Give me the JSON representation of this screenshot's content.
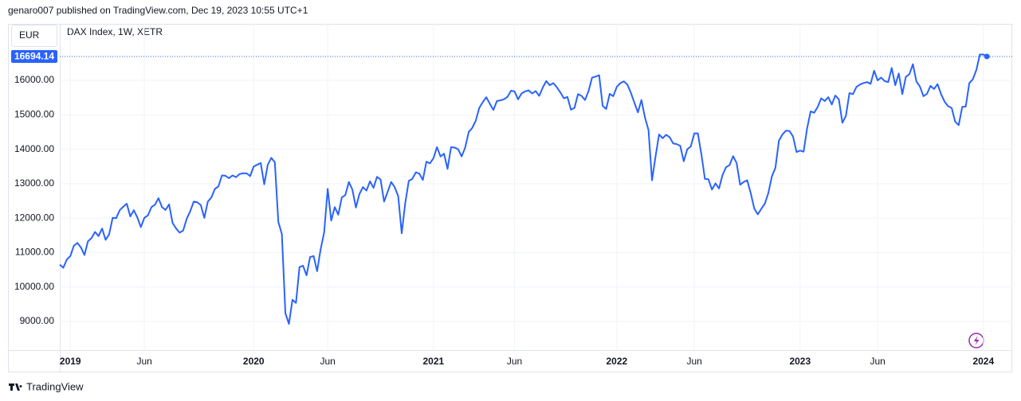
{
  "header": "genaro007 published on TradingView.com, Dec 19, 2023 10:55 UTC+1",
  "footer": "TradingView",
  "chart_data": {
    "type": "line",
    "currency": "EUR",
    "title": "DAX Index, 1W, XETR",
    "color": "#2962ff",
    "grid": true,
    "values": [
      10650,
      10560,
      10800,
      10900,
      11200,
      11280,
      11150,
      10930,
      11330,
      11420,
      11600,
      11480,
      11700,
      11370,
      11530,
      12010,
      12000,
      12230,
      12330,
      12420,
      12050,
      12230,
      12020,
      11740,
      12010,
      12080,
      12320,
      12390,
      12580,
      12320,
      12240,
      12400,
      11860,
      11700,
      11580,
      11640,
      11980,
      12200,
      12480,
      12460,
      12380,
      12010,
      12480,
      12600,
      12850,
      12920,
      13240,
      13230,
      13160,
      13240,
      13190,
      13280,
      13300,
      13300,
      13220,
      13500,
      13550,
      13600,
      12980,
      13550,
      13750,
      13620,
      11890,
      11540,
      9240,
      8930,
      9630,
      9540,
      10580,
      10620,
      10340,
      10870,
      10900,
      10460,
      11100,
      11590,
      12850,
      11930,
      12320,
      12100,
      12600,
      12670,
      13050,
      12830,
      12310,
      12700,
      12900,
      12800,
      13070,
      12880,
      13200,
      13120,
      12480,
      12760,
      13050,
      12900,
      12640,
      11560,
      12440,
      13080,
      13140,
      13330,
      13290,
      13110,
      13640,
      13590,
      13740,
      14060,
      13790,
      13870,
      13430,
      14060,
      14050,
      14000,
      13790,
      14050,
      14500,
      14620,
      14830,
      15200,
      15370,
      15510,
      15320,
      15140,
      15400,
      15420,
      15450,
      15520,
      15700,
      15680,
      15450,
      15620,
      15680,
      15710,
      15620,
      15690,
      15550,
      15790,
      15980,
      15860,
      15920,
      15800,
      15650,
      15480,
      15520,
      15150,
      15200,
      15600,
      15550,
      15430,
      15690,
      16080,
      16110,
      16150,
      15260,
      15170,
      15610,
      15540,
      15810,
      15920,
      15970,
      15880,
      15640,
      15350,
      15070,
      15430,
      14920,
      14560,
      13100,
      13790,
      14430,
      14320,
      14420,
      14350,
      14170,
      14150,
      14100,
      13650,
      14000,
      14080,
      14460,
      14460,
      13860,
      13140,
      13130,
      12830,
      13010,
      12860,
      13250,
      13480,
      13540,
      13800,
      13600,
      12970,
      13050,
      13100,
      12730,
      12280,
      12110,
      12270,
      12420,
      12730,
      13210,
      13460,
      14250,
      14430,
      14540,
      14530,
      14370,
      13920,
      13960,
      13930,
      14610,
      15100,
      15060,
      15230,
      15480,
      15400,
      15510,
      15300,
      15560,
      15450,
      14770,
      14970,
      15630,
      15600,
      15810,
      15880,
      15920,
      15950,
      15900,
      16280,
      16000,
      16080,
      15980,
      15950,
      16360,
      15860,
      16200,
      15600,
      16100,
      16180,
      16470,
      15970,
      15820,
      15540,
      15610,
      15840,
      15750,
      15890,
      15600,
      15380,
      15250,
      15200,
      14800,
      14700,
      15230,
      15240,
      15920,
      16030,
      16300,
      16750,
      16750,
      16694.14
    ],
    "ylim": [
      8170,
      17640
    ],
    "yticks": [
      {
        "value": 9000,
        "label": "9000.00"
      },
      {
        "value": 10000,
        "label": "10000.00"
      },
      {
        "value": 11000,
        "label": "11000.00"
      },
      {
        "value": 12000,
        "label": "12000.00"
      },
      {
        "value": 13000,
        "label": "13000.00"
      },
      {
        "value": 14000,
        "label": "14000.00"
      },
      {
        "value": 15000,
        "label": "15000.00"
      },
      {
        "value": 16000,
        "label": "16000.00"
      }
    ],
    "xlim": [
      0,
      263.4
    ],
    "xticks": [
      {
        "value": 3,
        "label": "2019"
      },
      {
        "value": 24,
        "label": "Jun"
      },
      {
        "value": 55,
        "label": "2020"
      },
      {
        "value": 76,
        "label": "Jun"
      },
      {
        "value": 106,
        "label": "2021"
      },
      {
        "value": 129,
        "label": "Jun"
      },
      {
        "value": 158,
        "label": "2022"
      },
      {
        "value": 180,
        "label": "Jun"
      },
      {
        "value": 210,
        "label": "2023"
      },
      {
        "value": 232,
        "label": "Jun"
      },
      {
        "value": 262,
        "label": "2024"
      }
    ]
  }
}
